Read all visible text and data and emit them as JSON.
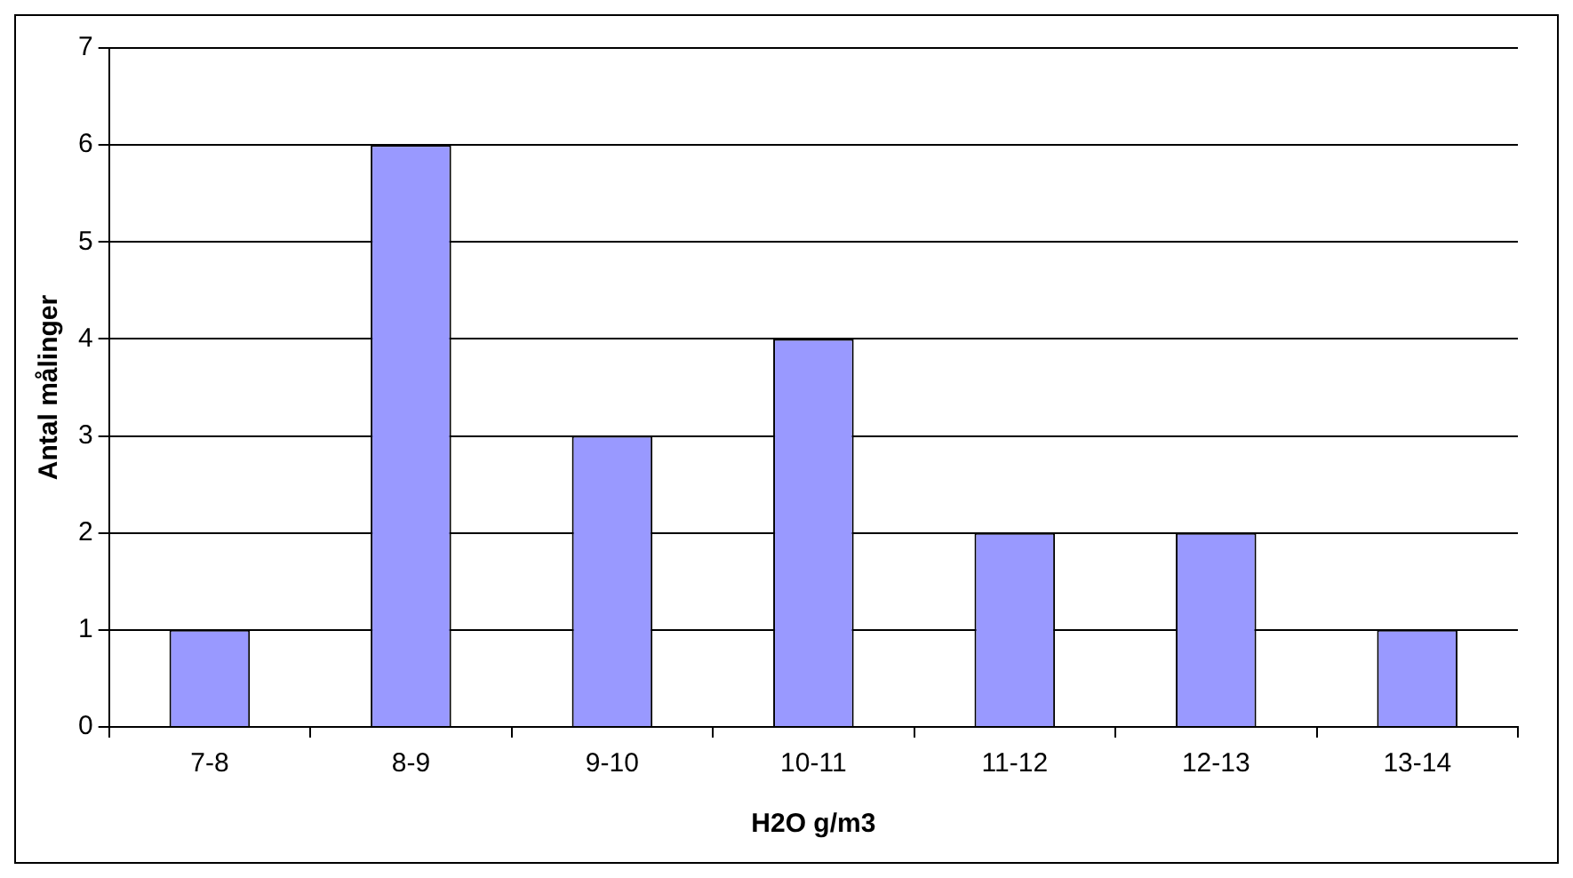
{
  "chart_data": {
    "type": "bar",
    "xlabel": "H2O g/m3",
    "ylabel": "Antal målinger",
    "categories": [
      "7-8",
      "8-9",
      "9-10",
      "10-11",
      "11-12",
      "12-13",
      "13-14"
    ],
    "values": [
      1,
      6,
      3,
      4,
      2,
      2,
      1
    ],
    "color": "#9999ff",
    "ylim": [
      0,
      7
    ],
    "yticks": [
      0,
      1,
      2,
      3,
      4,
      5,
      6,
      7
    ],
    "grid": "y",
    "legend": false
  }
}
